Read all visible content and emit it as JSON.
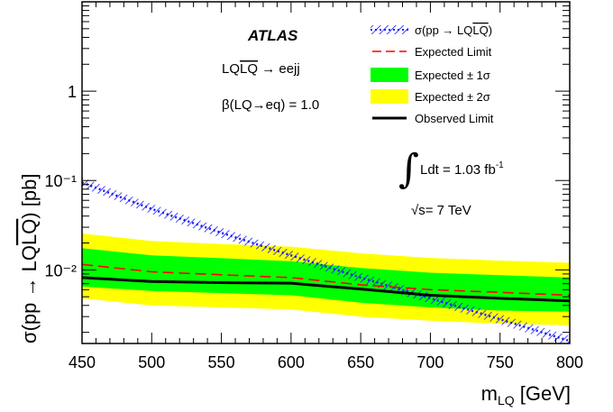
{
  "chart_data": {
    "type": "line",
    "title": "",
    "experiment": "ATLAS",
    "process_label": "LQLQ → eejj",
    "beta_label": "β(LQ→eq) = 1.0",
    "luminosity_label": "Ldt = 1.03 fb⁻¹",
    "energy_label": "√s= 7 TeV",
    "xlabel": "m_LQ [GeV]",
    "ylabel": "σ(pp → LQLQ) [pb]",
    "xlim": [
      450,
      800
    ],
    "ylim": [
      0.0015,
      10
    ],
    "y_scale": "log",
    "x_ticks": [
      450,
      500,
      550,
      600,
      650,
      700,
      750,
      800
    ],
    "y_ticks": [
      {
        "value": 0.01,
        "label": "10⁻²"
      },
      {
        "value": 0.1,
        "label": "10⁻¹"
      },
      {
        "value": 1,
        "label": "1"
      }
    ],
    "x": [
      450,
      500,
      550,
      600,
      650,
      700,
      750,
      800
    ],
    "series": [
      {
        "name": "σ(pp → LQLQ)",
        "color": "#1a1aff",
        "style": "hatched-dotted",
        "x": [
          450,
          500,
          550,
          600,
          650,
          700,
          750,
          800
        ],
        "values": [
          0.095,
          0.048,
          0.026,
          0.0145,
          0.0082,
          0.0048,
          0.0028,
          0.0016
        ]
      },
      {
        "name": "Expected Limit",
        "color": "#ff0000",
        "style": "dashed",
        "values": [
          0.0115,
          0.0095,
          0.0088,
          0.0082,
          0.0068,
          0.006,
          0.0056,
          0.0052
        ]
      },
      {
        "name": "Expected ± 1σ",
        "color": "#00ff00",
        "style": "band",
        "lower": [
          0.0065,
          0.0058,
          0.0055,
          0.0052,
          0.0043,
          0.0038,
          0.0035,
          0.0034
        ],
        "upper": [
          0.0175,
          0.0145,
          0.0135,
          0.0125,
          0.0105,
          0.0093,
          0.0087,
          0.0082
        ]
      },
      {
        "name": "Expected ± 2σ",
        "color": "#ffff00",
        "style": "band",
        "lower": [
          0.0048,
          0.004,
          0.0038,
          0.0036,
          0.003,
          0.0027,
          0.0025,
          0.0024
        ],
        "upper": [
          0.0255,
          0.021,
          0.0195,
          0.0182,
          0.0153,
          0.0136,
          0.0127,
          0.012
        ]
      },
      {
        "name": "Observed Limit",
        "color": "#000000",
        "style": "solid",
        "values": [
          0.0082,
          0.0074,
          0.0072,
          0.0071,
          0.0061,
          0.0052,
          0.0048,
          0.0045
        ]
      }
    ],
    "legend_position": "top-right",
    "grid": false
  }
}
